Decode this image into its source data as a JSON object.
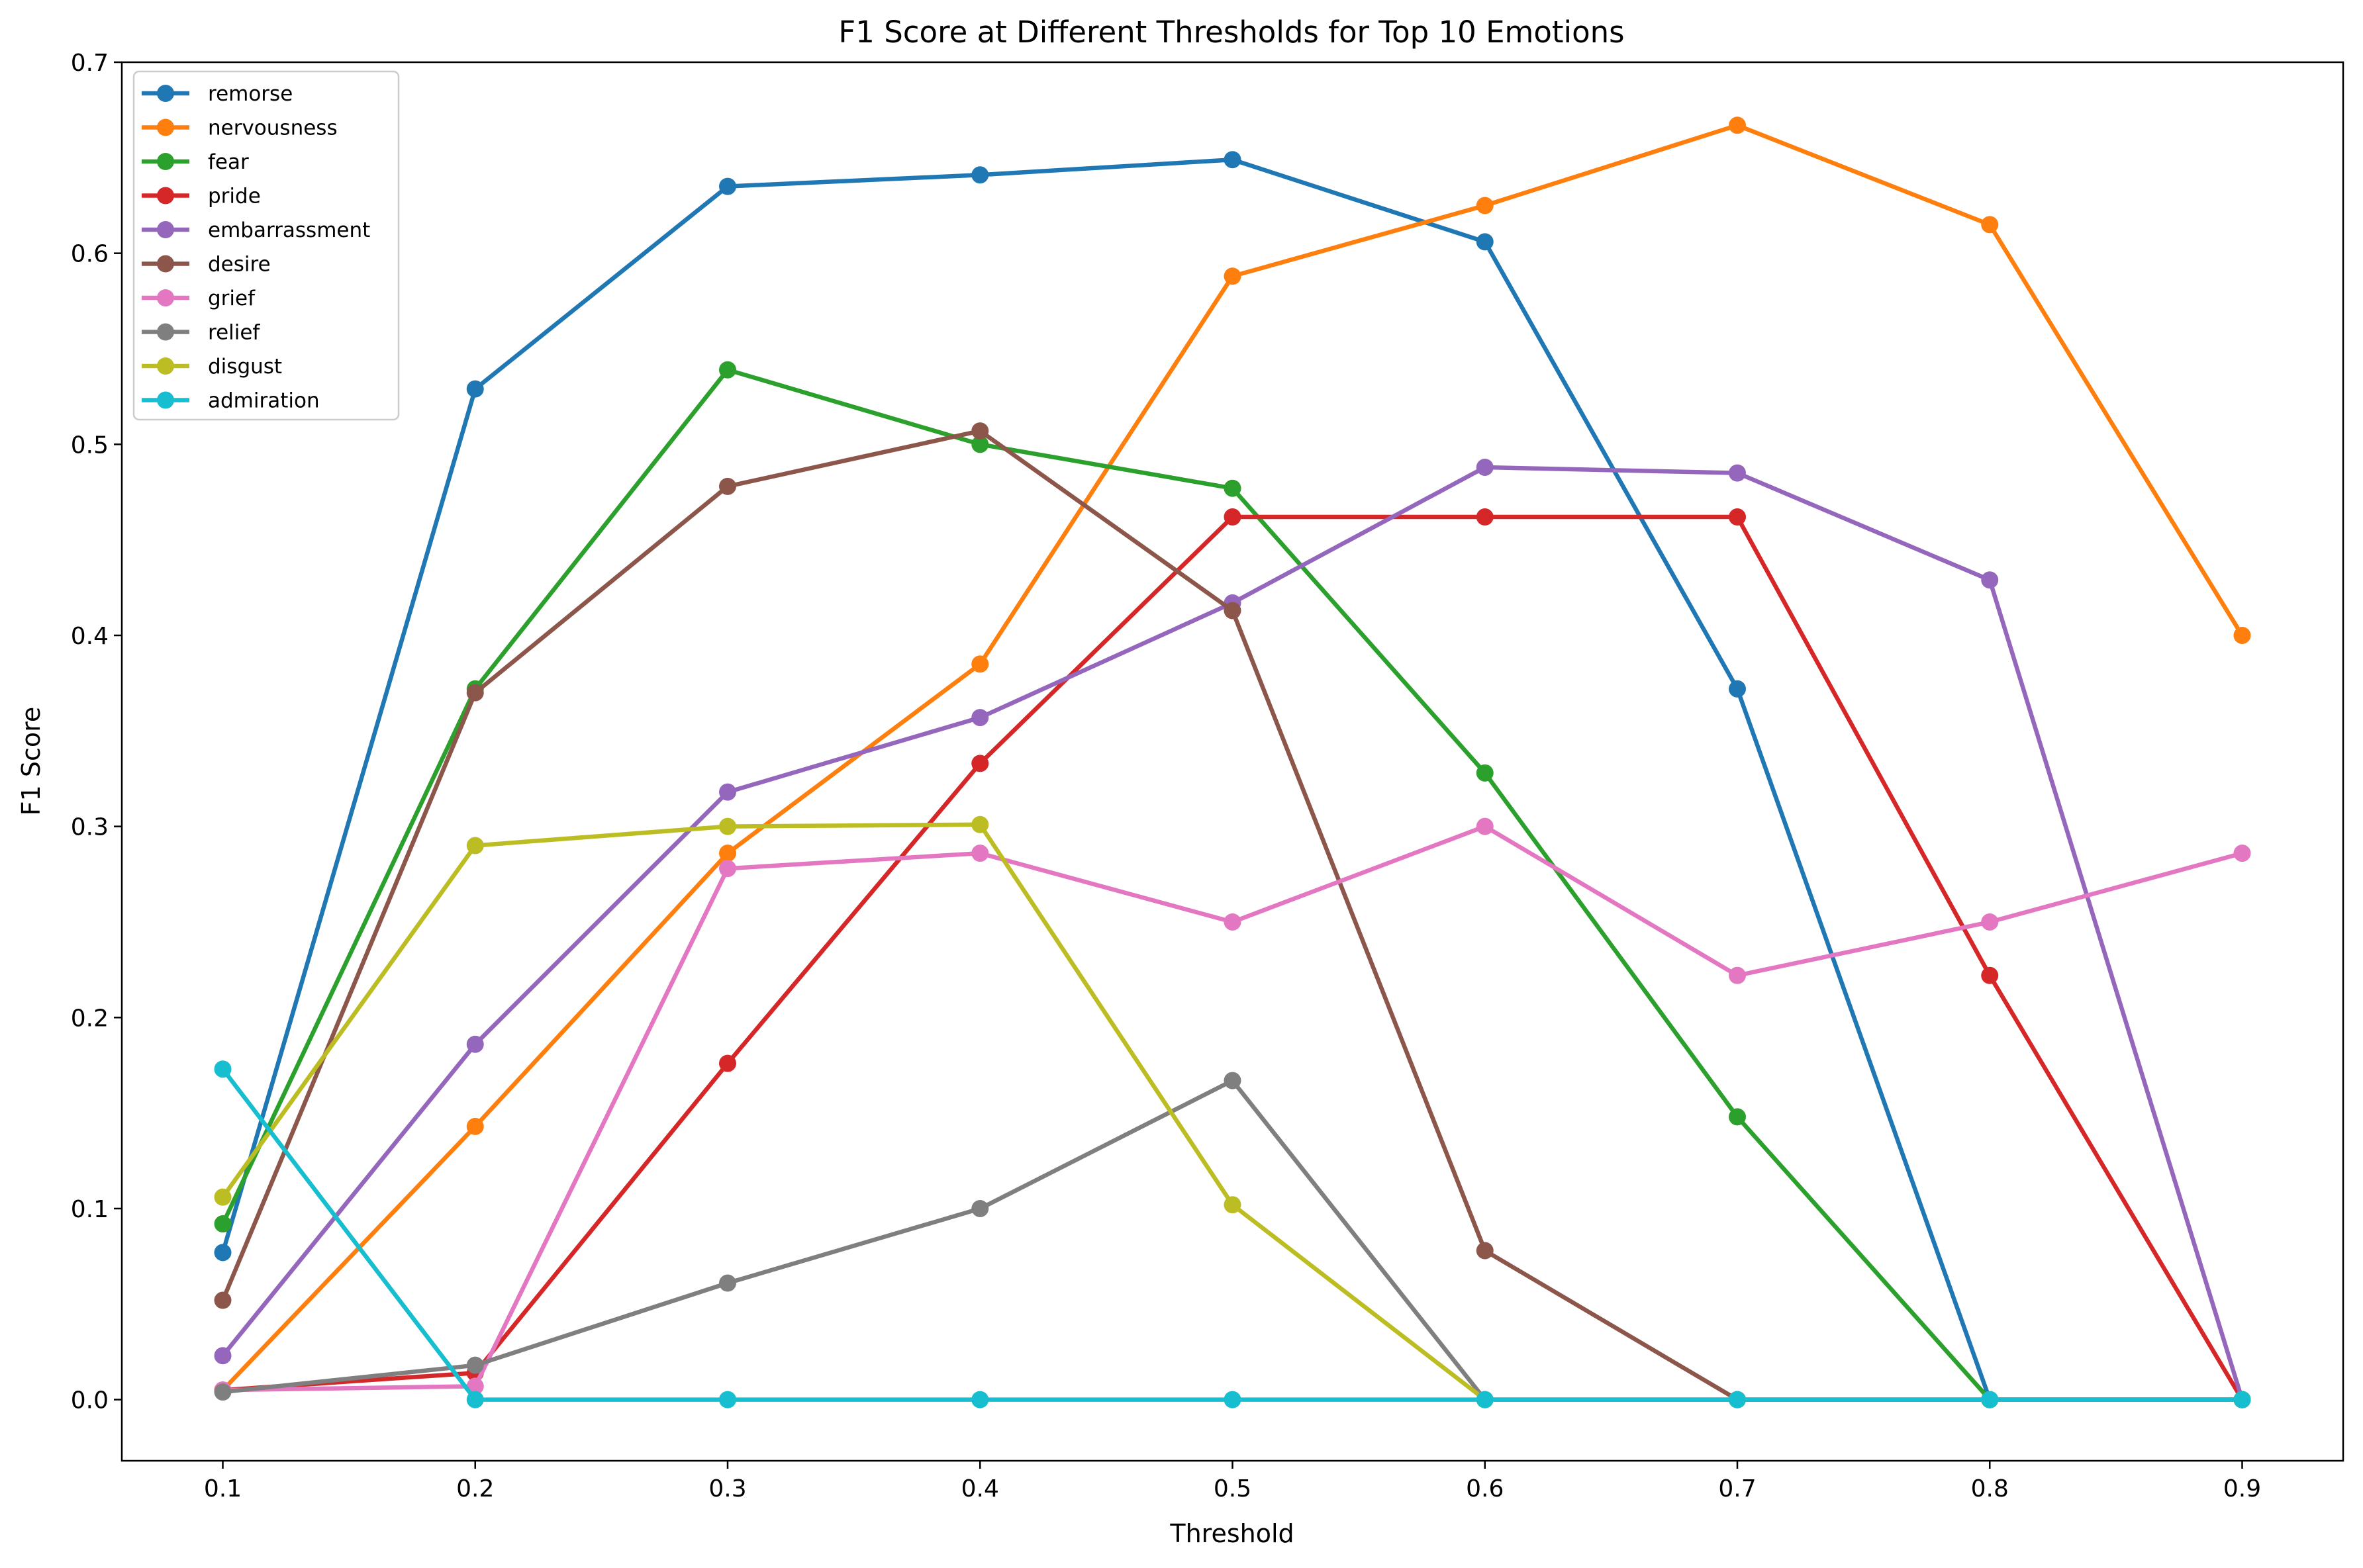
{
  "chart_data": {
    "type": "line",
    "title": "F1 Score at Different Thresholds for Top 10 Emotions",
    "xlabel": "Threshold",
    "ylabel": "F1 Score",
    "x": [
      0.1,
      0.2,
      0.3,
      0.4,
      0.5,
      0.6,
      0.7,
      0.8,
      0.9
    ],
    "xticks": [
      "0.1",
      "0.2",
      "0.3",
      "0.4",
      "0.5",
      "0.6",
      "0.7",
      "0.8",
      "0.9"
    ],
    "yticks": [
      "0.0",
      "0.1",
      "0.2",
      "0.3",
      "0.4",
      "0.5",
      "0.6",
      "0.7"
    ],
    "xlim": [
      0.06,
      0.94
    ],
    "ylim": [
      -0.032,
      0.7
    ],
    "grid": false,
    "legend_position": "upper-left",
    "series": [
      {
        "name": "remorse",
        "color": "#1f77b4",
        "values": [
          0.077,
          0.529,
          0.635,
          0.641,
          0.649,
          0.606,
          0.372,
          0.0,
          0.0
        ]
      },
      {
        "name": "nervousness",
        "color": "#ff7f0e",
        "values": [
          0.005,
          0.143,
          0.286,
          0.385,
          0.588,
          0.625,
          0.667,
          0.615,
          0.4
        ]
      },
      {
        "name": "fear",
        "color": "#2ca02c",
        "values": [
          0.092,
          0.372,
          0.539,
          0.5,
          0.477,
          0.328,
          0.148,
          0.0,
          0.0
        ]
      },
      {
        "name": "pride",
        "color": "#d62728",
        "values": [
          0.005,
          0.014,
          0.176,
          0.333,
          0.462,
          0.462,
          0.462,
          0.222,
          0.0
        ]
      },
      {
        "name": "embarrassment",
        "color": "#9467bd",
        "values": [
          0.023,
          0.186,
          0.318,
          0.357,
          0.417,
          0.488,
          0.485,
          0.429,
          0.0
        ]
      },
      {
        "name": "desire",
        "color": "#8c564b",
        "values": [
          0.052,
          0.37,
          0.478,
          0.507,
          0.413,
          0.078,
          0.0,
          0.0,
          0.0
        ]
      },
      {
        "name": "grief",
        "color": "#e377c2",
        "values": [
          0.005,
          0.007,
          0.278,
          0.286,
          0.25,
          0.3,
          0.222,
          0.25,
          0.286
        ]
      },
      {
        "name": "relief",
        "color": "#7f7f7f",
        "values": [
          0.004,
          0.018,
          0.061,
          0.1,
          0.167,
          0.0,
          0.0,
          0.0,
          0.0
        ]
      },
      {
        "name": "disgust",
        "color": "#bcbd22",
        "values": [
          0.106,
          0.29,
          0.3,
          0.301,
          0.102,
          0.0,
          0.0,
          0.0,
          0.0
        ]
      },
      {
        "name": "admiration",
        "color": "#17becf",
        "values": [
          0.173,
          0.0,
          0.0,
          0.0,
          0.0,
          0.0,
          0.0,
          0.0,
          0.0
        ]
      }
    ]
  }
}
